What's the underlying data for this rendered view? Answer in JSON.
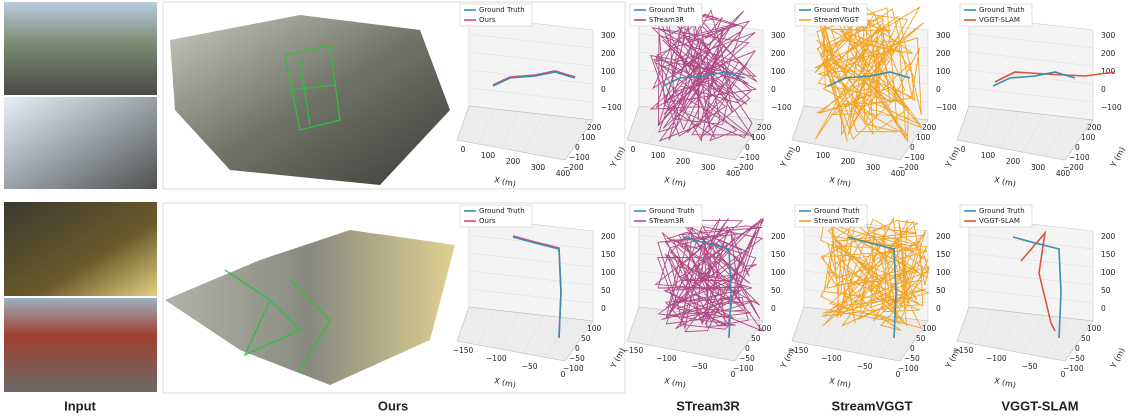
{
  "columns": [
    "Input",
    "Ours",
    "STream3R",
    "StreamVGGT",
    "VGGT-SLAM"
  ],
  "rows": [
    {
      "z_ticks": [
        "300",
        "200",
        "100",
        "0",
        "−100"
      ],
      "x_ticks": [
        "0",
        "100",
        "200",
        "300",
        "400"
      ],
      "y_ticks": [
        "200",
        "100",
        "0",
        "−100",
        "−200"
      ],
      "x_label": "X (m)",
      "y_label": "Y (m)",
      "plots": [
        {
          "legend": [
            "Ground Truth",
            "Ours"
          ]
        },
        {
          "legend": [
            "Ground Truth",
            "STream3R"
          ]
        },
        {
          "legend": [
            "Ground Truth",
            "StreamVGGT"
          ]
        },
        {
          "legend": [
            "Ground Truth",
            "VGGT-SLAM"
          ]
        }
      ]
    },
    {
      "z_ticks": [
        "200",
        "150",
        "100",
        "50",
        "0"
      ],
      "x_ticks": [
        "−150",
        "−100",
        "−50",
        "0"
      ],
      "y_ticks": [
        "100",
        "50",
        "0",
        "−50",
        "−100"
      ],
      "x_label": "X (m)",
      "y_label": "Y (m)",
      "plots": [
        {
          "legend": [
            "Ground Truth",
            "Ours"
          ]
        },
        {
          "legend": [
            "Ground Truth",
            "STream3R"
          ]
        },
        {
          "legend": [
            "Ground Truth",
            "StreamVGGT"
          ]
        },
        {
          "legend": [
            "Ground Truth",
            "VGGT-SLAM"
          ]
        }
      ]
    }
  ]
}
